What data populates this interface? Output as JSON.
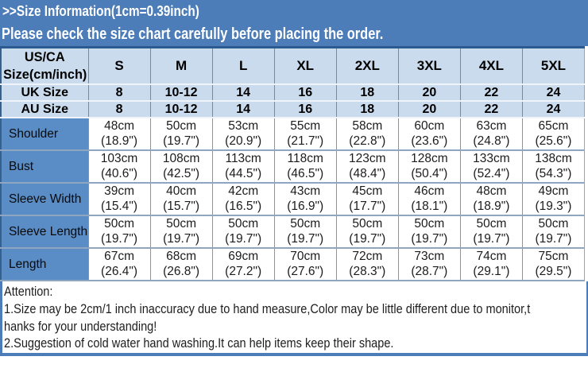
{
  "colors": {
    "banner_blue": "#4d7db9",
    "navy_border": "#2b5a90",
    "header_bg": "#cadbed",
    "label_column_bg": "#5a8cc6",
    "cell_bg": "#ffffff",
    "grid_line": "#8ea6bf"
  },
  "banner": {
    "title": ">>Size Information(1cm=0.39inch)",
    "warning": "Please check the size chart carefully before placing the order."
  },
  "table": {
    "corner": {
      "line1": "US/CA",
      "line2": "Size(cm/inch)"
    },
    "columns": [
      "S",
      "M",
      "L",
      "XL",
      "2XL",
      "3XL",
      "4XL",
      "5XL"
    ],
    "size_rows": [
      {
        "label": "UK Size",
        "values": [
          "8",
          "10-12",
          "14",
          "16",
          "18",
          "20",
          "22",
          "24"
        ]
      },
      {
        "label": "AU Size",
        "values": [
          "8",
          "10-12",
          "14",
          "16",
          "18",
          "20",
          "22",
          "24"
        ]
      }
    ],
    "measure_rows": [
      {
        "label": "Shoulder",
        "cells": [
          [
            "48cm",
            "(18.9\")"
          ],
          [
            "50cm",
            "(19.7\")"
          ],
          [
            "53cm",
            "(20.9\")"
          ],
          [
            "55cm",
            "(21.7\")"
          ],
          [
            "58cm",
            "(22.8\")"
          ],
          [
            "60cm",
            "(23.6\")"
          ],
          [
            "63cm",
            "(24.8\")"
          ],
          [
            "65cm",
            "(25.6\")"
          ]
        ]
      },
      {
        "label": "Bust",
        "cells": [
          [
            "103cm",
            "(40.6\")"
          ],
          [
            "108cm",
            "(42.5\")"
          ],
          [
            "113cm",
            "(44.5\")"
          ],
          [
            "118cm",
            "(46.5\")"
          ],
          [
            "123cm",
            "(48.4\")"
          ],
          [
            "128cm",
            "(50.4\")"
          ],
          [
            "133cm",
            "(52.4\")"
          ],
          [
            "138cm",
            "(54.3\")"
          ]
        ]
      },
      {
        "label": "Sleeve Width",
        "cells": [
          [
            "39cm",
            "(15.4\")"
          ],
          [
            "40cm",
            "(15.7\")"
          ],
          [
            "42cm",
            "(16.5\")"
          ],
          [
            "43cm",
            "(16.9\")"
          ],
          [
            "45cm",
            "(17.7\")"
          ],
          [
            "46cm",
            "(18.1\")"
          ],
          [
            "48cm",
            "(18.9\")"
          ],
          [
            "49cm",
            "(19.3\")"
          ]
        ]
      },
      {
        "label": "Sleeve Length",
        "cells": [
          [
            "50cm",
            "(19.7\")"
          ],
          [
            "50cm",
            "(19.7\")"
          ],
          [
            "50cm",
            "(19.7\")"
          ],
          [
            "50cm",
            "(19.7\")"
          ],
          [
            "50cm",
            "(19.7\")"
          ],
          [
            "50cm",
            "(19.7\")"
          ],
          [
            "50cm",
            "(19.7\")"
          ],
          [
            "50cm",
            "(19.7\")"
          ]
        ]
      },
      {
        "label": "Length",
        "cells": [
          [
            "67cm",
            "(26.4\")"
          ],
          [
            "68cm",
            "(26.8\")"
          ],
          [
            "69cm",
            "(27.2\")"
          ],
          [
            "70cm",
            "(27.6\")"
          ],
          [
            "72cm",
            "(28.3\")"
          ],
          [
            "73cm",
            "(28.7\")"
          ],
          [
            "74cm",
            "(29.1\")"
          ],
          [
            "75cm",
            "(29.5\")"
          ]
        ]
      }
    ]
  },
  "attention": {
    "heading": "Attention:",
    "lines": [
      "1.Size may be 2cm/1 inch inaccuracy due to hand measure,Color may be little different due to monitor,t",
      "hanks for your understanding!",
      "2.Suggestion of cold water hand washing.It can help items keep their shape."
    ]
  }
}
